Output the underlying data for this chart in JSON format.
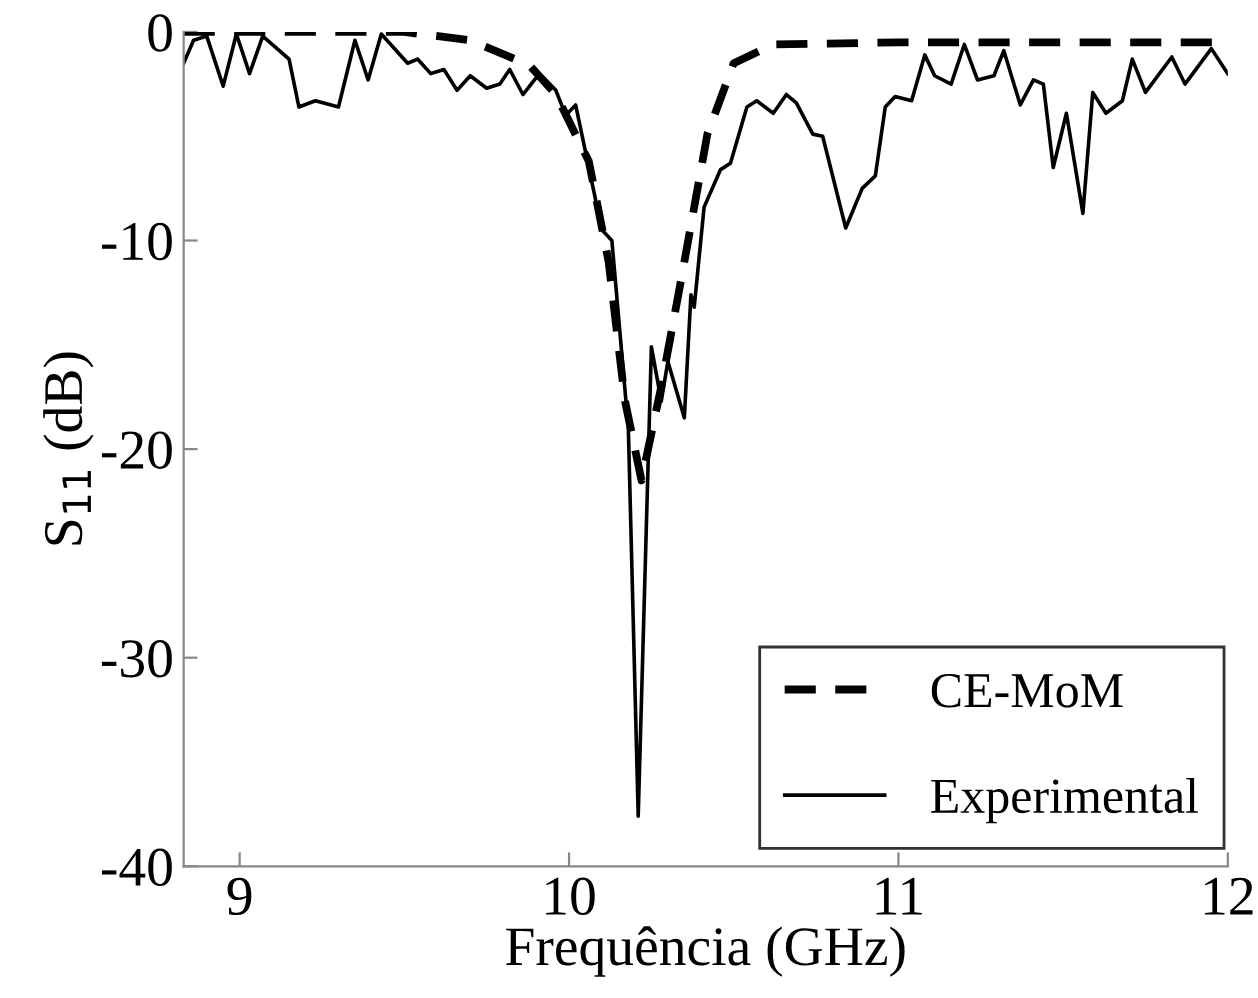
{
  "chart_data": {
    "type": "line",
    "xlabel": "Frequência (GHz)",
    "ylabel": "S$_{11}$ (dB)",
    "xlim": [
      8.83,
      12
    ],
    "ylim": [
      -40,
      0
    ],
    "xticks": [
      9,
      10,
      11,
      12
    ],
    "yticks": [
      0,
      -10,
      -20,
      -30,
      -40
    ],
    "grid": false,
    "legend": "bottom right",
    "series": [
      {
        "name": "CE-MoM",
        "color": "#000000",
        "line_style": "dashed",
        "x": [
          8.83,
          9.2,
          9.5,
          9.7,
          9.88,
          9.96,
          10.06,
          10.12,
          10.17,
          10.22,
          10.28,
          10.34,
          10.42,
          10.5,
          10.62,
          11.0,
          11.5,
          12.0
        ],
        "values": [
          0,
          0,
          0,
          -0.4,
          -1.6,
          -3.0,
          -6.2,
          -11.0,
          -17.7,
          -21.5,
          -17.0,
          -11.9,
          -4.9,
          -1.5,
          -0.6,
          -0.5,
          -0.5,
          -0.5
        ]
      },
      {
        "name": "Experimental",
        "color": "#000000",
        "line_style": "solid",
        "x": [
          8.83,
          8.86,
          8.9,
          8.95,
          8.99,
          9.03,
          9.07,
          9.15,
          9.18,
          9.23,
          9.3,
          9.35,
          9.39,
          9.43,
          9.51,
          9.54,
          9.58,
          9.62,
          9.66,
          9.7,
          9.75,
          9.79,
          9.82,
          9.86,
          9.91,
          9.96,
          9.99,
          10.02,
          10.1,
          10.13,
          10.18,
          10.21,
          10.25,
          10.28,
          10.3,
          10.35,
          10.37,
          10.38,
          10.41,
          10.46,
          10.49,
          10.54,
          10.57,
          10.62,
          10.66,
          10.69,
          10.74,
          10.77,
          10.84,
          10.89,
          10.93,
          10.96,
          10.99,
          11.04,
          11.08,
          11.11,
          11.16,
          11.2,
          11.24,
          11.29,
          11.32,
          11.37,
          11.41,
          11.44,
          11.47,
          11.51,
          11.56,
          11.59,
          11.63,
          11.68,
          11.71,
          11.75,
          11.83,
          11.87,
          11.95,
          12.0
        ],
        "values": [
          -1.5,
          -0.4,
          -0.2,
          -2.6,
          -0.1,
          -2.0,
          -0.2,
          -1.3,
          -3.6,
          -3.3,
          -3.6,
          -0.4,
          -2.3,
          -0.1,
          -1.5,
          -1.3,
          -2.0,
          -1.8,
          -2.8,
          -2.1,
          -2.7,
          -2.5,
          -1.8,
          -3.0,
          -2.0,
          -2.8,
          -4.0,
          -3.5,
          -9.5,
          -10.0,
          -19.0,
          -37.6,
          -15.1,
          -17.7,
          -15.8,
          -18.5,
          -12.6,
          -13.2,
          -8.4,
          -6.6,
          -6.3,
          -3.6,
          -3.3,
          -3.9,
          -3.0,
          -3.4,
          -4.9,
          -5.0,
          -9.4,
          -7.5,
          -6.9,
          -3.6,
          -3.1,
          -3.3,
          -1.1,
          -2.1,
          -2.5,
          -0.6,
          -2.3,
          -2.1,
          -0.9,
          -3.5,
          -2.3,
          -2.5,
          -6.5,
          -3.9,
          -8.7,
          -2.9,
          -3.9,
          -3.3,
          -1.3,
          -2.9,
          -1.2,
          -2.5,
          -0.8,
          -2.0
        ]
      }
    ]
  }
}
